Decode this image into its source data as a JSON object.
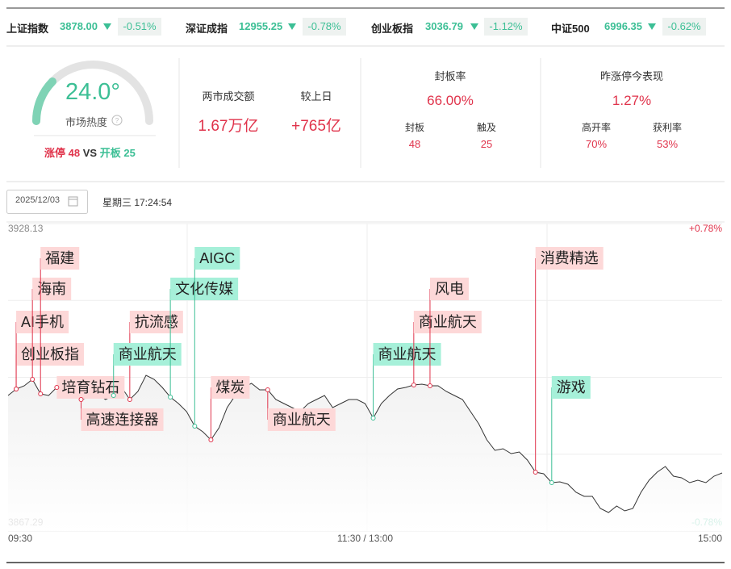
{
  "indices": [
    {
      "name": "上证指数",
      "value": "3878.00",
      "change": "-0.51%"
    },
    {
      "name": "深证成指",
      "value": "12955.25",
      "change": "-0.78%"
    },
    {
      "name": "创业板指",
      "value": "3036.79",
      "change": "-1.12%"
    },
    {
      "name": "中证500",
      "value": "6996.35",
      "change": "-0.62%"
    }
  ],
  "heat": {
    "value": "24.0°",
    "label": "市场热度",
    "limit_up_label": "涨停",
    "limit_up": "48",
    "vs": "VS",
    "open_label": "开板",
    "open": "25"
  },
  "turnover": {
    "label": "两市成交额",
    "value": "1.67万亿",
    "diff_label": "较上日",
    "diff": "+765亿"
  },
  "seal": {
    "label": "封板率",
    "value": "66.00%",
    "sealed_label": "封板",
    "sealed": "48",
    "touched_label": "触及",
    "touched": "25"
  },
  "yesterday": {
    "label": "昨涨停今表现",
    "value": "1.27%",
    "high_open_label": "高开率",
    "high_open": "70%",
    "profit_label": "获利率",
    "profit": "53%"
  },
  "date": "2025/12/03",
  "weekday_time": "星期三 17:24:54",
  "chart": {
    "type": "line",
    "ylim": [
      3867.29,
      3928.13
    ],
    "yticks": [
      3867.29,
      3928.13
    ],
    "right_labels": [
      "-0.78%",
      "+0.78%"
    ],
    "xlabels": [
      "09:30",
      "11:30 / 13:00",
      "15:00"
    ],
    "color": "#333333",
    "values": [
      3894.12,
      3895.39,
      3896.03,
      3897.31,
      3894.44,
      3894.12,
      3895.71,
      3894.92,
      3894.12,
      3893.32,
      3893.8,
      3894.6,
      3893.32,
      3894.12,
      3895.71,
      3893.32,
      3894.92,
      3898.11,
      3897.31,
      3895.71,
      3893.8,
      3892.52,
      3890.92,
      3888.05,
      3886.93,
      3885.33,
      3887.73,
      3891.72,
      3894.12,
      3895.71,
      3896.51,
      3895.23,
      3895.23,
      3893.32,
      3892.52,
      3891.72,
      3890.92,
      3892.52,
      3893.32,
      3894.12,
      3891.72,
      3892.52,
      3893.32,
      3893.32,
      3892.52,
      3889.65,
      3892.52,
      3894.12,
      3895.39,
      3895.71,
      3896.19,
      3896.35,
      3896.03,
      3896.03,
      3894.92,
      3894.12,
      3893.32,
      3890.92,
      3888.53,
      3885.33,
      3883.26,
      3883.58,
      3882.62,
      3882.94,
      3881.34,
      3878.95,
      3878.63,
      3876.87,
      3877.03,
      3876.55,
      3874.95,
      3874.15,
      3874.15,
      3871.76,
      3870.96,
      3872.24,
      3871.28,
      3871.76,
      3874.95,
      3877.35,
      3878.95,
      3880.06,
      3878.15,
      3877.83,
      3876.87,
      3877.35,
      3876.87,
      3878.15,
      3878.79
    ],
    "annotations": [
      {
        "label": "创业板指",
        "kind": "up"
      },
      {
        "label": "AI手机",
        "kind": "up"
      },
      {
        "label": "海南",
        "kind": "up"
      },
      {
        "label": "福建",
        "kind": "up"
      },
      {
        "label": "培育钻石",
        "kind": "up"
      },
      {
        "label": "高速连接器",
        "kind": "up"
      },
      {
        "label": "抗流感",
        "kind": "up"
      },
      {
        "label": "商业航天",
        "kind": "down"
      },
      {
        "label": "文化传媒",
        "kind": "down"
      },
      {
        "label": "AIGC",
        "kind": "down"
      },
      {
        "label": "煤炭",
        "kind": "up"
      },
      {
        "label": "商业航天",
        "kind": "up"
      },
      {
        "label": "商业航天",
        "kind": "down"
      },
      {
        "label": "商业航天",
        "kind": "up"
      },
      {
        "label": "风电",
        "kind": "up"
      },
      {
        "label": "消费精选",
        "kind": "up"
      },
      {
        "label": "游戏",
        "kind": "down"
      }
    ]
  }
}
